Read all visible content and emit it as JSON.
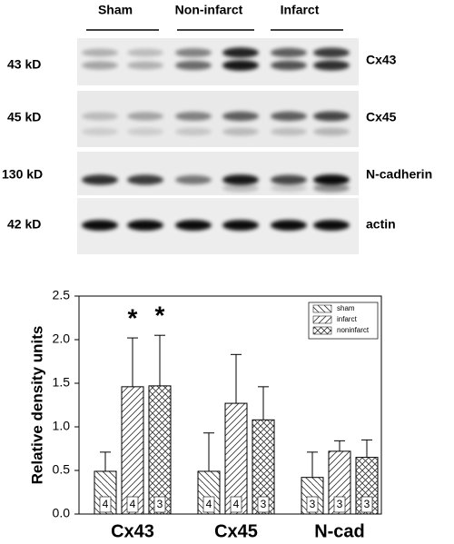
{
  "blot": {
    "groups": [
      "Sham",
      "Non-infarct",
      "Infarct"
    ],
    "rows": [
      {
        "size": "43 kD",
        "protein": "Cx43"
      },
      {
        "size": "45 kD",
        "protein": "Cx45"
      },
      {
        "size": "130 kD",
        "protein": "N-cadherin"
      },
      {
        "size": "42 kD",
        "protein": "actin"
      }
    ]
  },
  "chart_data": {
    "type": "bar",
    "y_label": "Relative density units",
    "categories": [
      "Cx43",
      "Cx45",
      "N-cad"
    ],
    "series": [
      {
        "name": "sham",
        "hatch": "back",
        "values": [
          0.49,
          0.49,
          0.42
        ],
        "errors": [
          0.22,
          0.44,
          0.29
        ],
        "n": [
          4,
          4,
          3
        ],
        "significance": [
          null,
          null,
          null
        ]
      },
      {
        "name": "infarct",
        "hatch": "forward",
        "values": [
          1.46,
          1.27,
          0.72
        ],
        "errors": [
          0.56,
          0.56,
          0.12
        ],
        "n": [
          4,
          4,
          3
        ],
        "significance": [
          "*",
          null,
          null
        ]
      },
      {
        "name": "noninfarct",
        "hatch": "cross",
        "values": [
          1.47,
          1.08,
          0.65
        ],
        "errors": [
          0.58,
          0.38,
          0.2
        ],
        "n": [
          3,
          3,
          3
        ],
        "significance": [
          "*",
          null,
          null
        ]
      }
    ],
    "ylim": [
      0,
      2.5
    ],
    "yticks": [
      {
        "value": 0,
        "label": "0.0"
      },
      {
        "value": 0.5,
        "label": "0.5"
      },
      {
        "value": 1,
        "label": "1.0"
      },
      {
        "value": 1.5,
        "label": "1.5"
      },
      {
        "value": 2,
        "label": "2.0"
      },
      {
        "value": 2.5,
        "label": "2.5"
      }
    ],
    "legend": "top-right"
  }
}
